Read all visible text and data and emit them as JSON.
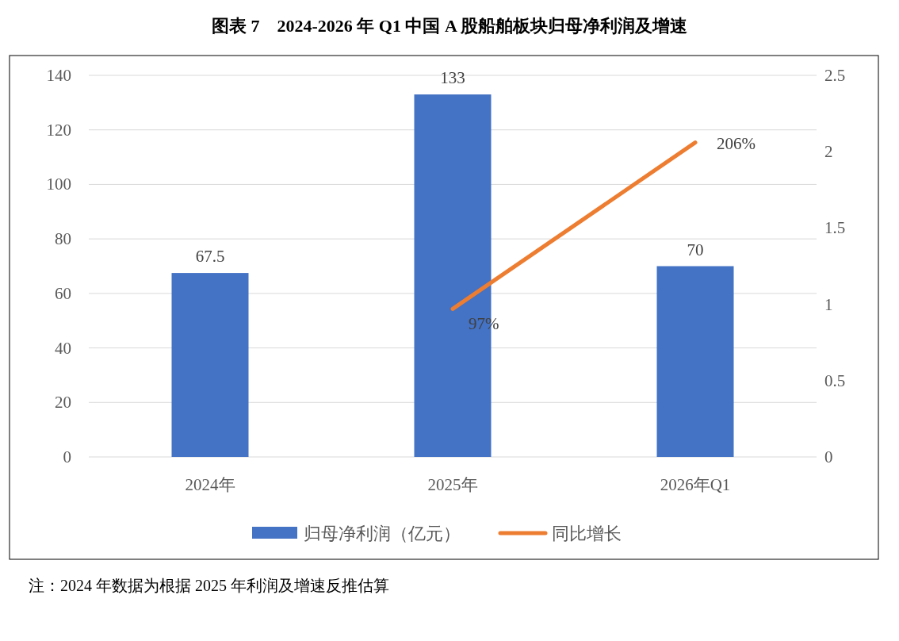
{
  "chart_data": {
    "type": "bar",
    "title": "图表 7　2024-2026 年 Q1 中国 A 股船舶板块归母净利润及增速",
    "categories": [
      "2024年",
      "2025年",
      "2026年Q1"
    ],
    "series": [
      {
        "name": "归母净利润（亿元）",
        "color": "#4472c4",
        "values": [
          67.5,
          133,
          70
        ],
        "value_labels": [
          "67.5",
          "133",
          "70"
        ]
      },
      {
        "name": "同比增长",
        "type": "line",
        "axis": "y2",
        "color": "#ed7d31",
        "values": [
          null,
          0.97,
          2.06
        ],
        "value_labels": [
          null,
          "97%",
          "206%"
        ]
      }
    ],
    "ylim": [
      0,
      140
    ],
    "yticks": [
      0,
      20,
      40,
      60,
      80,
      100,
      120,
      140
    ],
    "y2lim": [
      0,
      2.5
    ],
    "y2ticks": [
      0,
      0.5,
      1,
      1.5,
      2,
      2.5
    ],
    "grid": "y",
    "legend": "bottom",
    "annotations": [
      "注：2024 年数据为根据 2025 年利润及增速反推估算"
    ]
  }
}
